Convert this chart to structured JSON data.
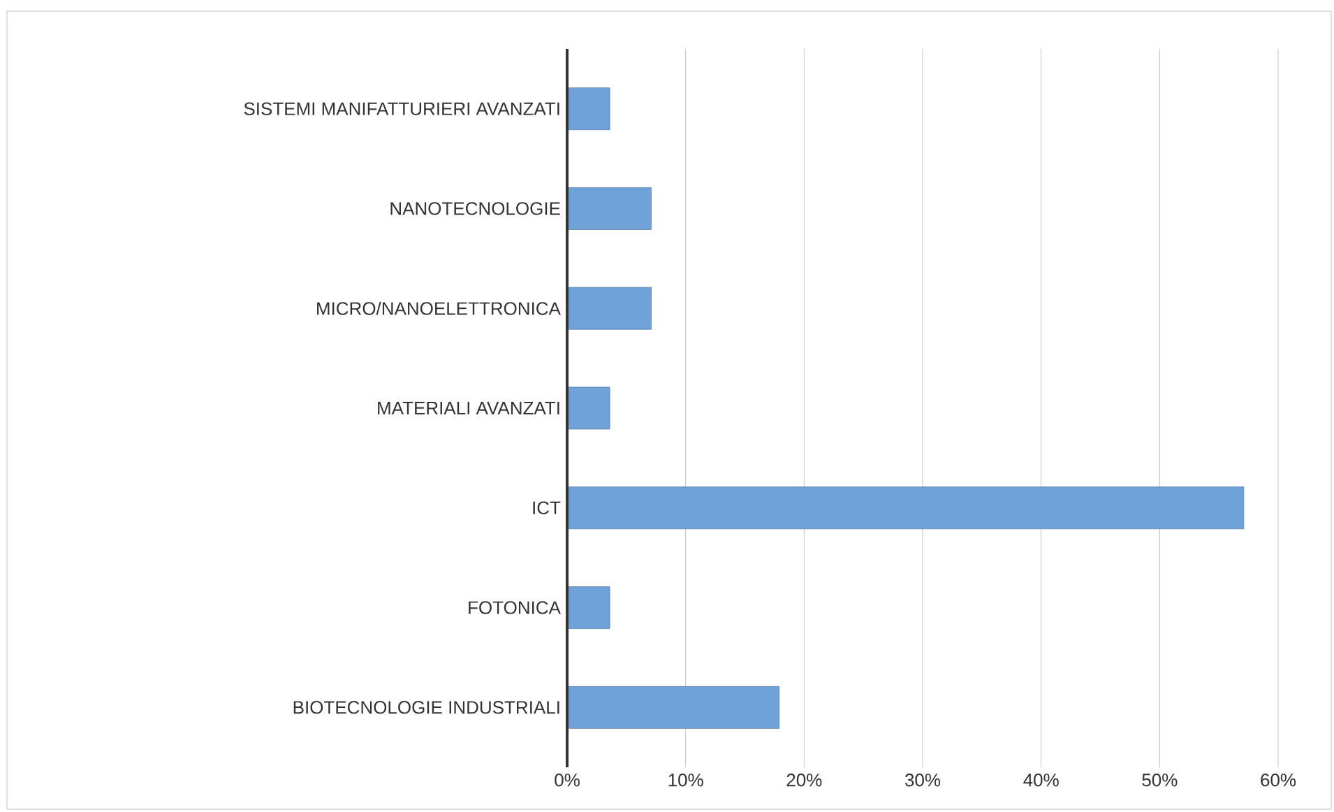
{
  "chart_data": {
    "type": "bar",
    "orientation": "horizontal",
    "categories": [
      "SISTEMI MANIFATTURIERI AVANZATI",
      "NANOTECNOLOGIE",
      "MICRO/NANOELETTRONICA",
      "MATERIALI AVANZATI",
      "ICT",
      "FOTONICA",
      "BIOTECNOLOGIE INDUSTRIALI"
    ],
    "values": [
      3.6,
      7.1,
      7.1,
      3.6,
      57.1,
      3.6,
      17.9
    ],
    "color": "#6fa3d8",
    "xlim": [
      0,
      60
    ],
    "xticks": [
      {
        "value": 0,
        "label": "0%"
      },
      {
        "value": 10,
        "label": "10%"
      },
      {
        "value": 20,
        "label": "20%"
      },
      {
        "value": 30,
        "label": "30%"
      },
      {
        "value": 40,
        "label": "40%"
      },
      {
        "value": 50,
        "label": "50%"
      },
      {
        "value": 60,
        "label": "60%"
      }
    ],
    "grid": "x"
  }
}
